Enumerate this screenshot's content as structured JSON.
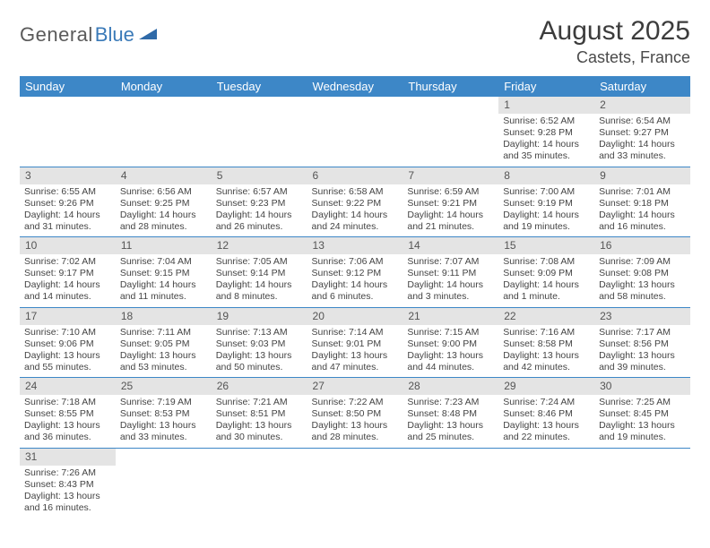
{
  "logo": {
    "word1": "General",
    "word2": "Blue"
  },
  "title": "August 2025",
  "location": "Castets, France",
  "colors": {
    "header_bg": "#3d87c7",
    "header_fg": "#ffffff",
    "daynum_bg": "#e4e4e4",
    "rule": "#3d87c7",
    "logo_gray": "#5a5a5a",
    "logo_blue": "#3a7ab8"
  },
  "day_labels": [
    "Sunday",
    "Monday",
    "Tuesday",
    "Wednesday",
    "Thursday",
    "Friday",
    "Saturday"
  ],
  "weeks": [
    [
      null,
      null,
      null,
      null,
      null,
      {
        "n": "1",
        "sr": "6:52 AM",
        "ss": "9:28 PM",
        "dl": "14 hours and 35 minutes."
      },
      {
        "n": "2",
        "sr": "6:54 AM",
        "ss": "9:27 PM",
        "dl": "14 hours and 33 minutes."
      }
    ],
    [
      {
        "n": "3",
        "sr": "6:55 AM",
        "ss": "9:26 PM",
        "dl": "14 hours and 31 minutes."
      },
      {
        "n": "4",
        "sr": "6:56 AM",
        "ss": "9:25 PM",
        "dl": "14 hours and 28 minutes."
      },
      {
        "n": "5",
        "sr": "6:57 AM",
        "ss": "9:23 PM",
        "dl": "14 hours and 26 minutes."
      },
      {
        "n": "6",
        "sr": "6:58 AM",
        "ss": "9:22 PM",
        "dl": "14 hours and 24 minutes."
      },
      {
        "n": "7",
        "sr": "6:59 AM",
        "ss": "9:21 PM",
        "dl": "14 hours and 21 minutes."
      },
      {
        "n": "8",
        "sr": "7:00 AM",
        "ss": "9:19 PM",
        "dl": "14 hours and 19 minutes."
      },
      {
        "n": "9",
        "sr": "7:01 AM",
        "ss": "9:18 PM",
        "dl": "14 hours and 16 minutes."
      }
    ],
    [
      {
        "n": "10",
        "sr": "7:02 AM",
        "ss": "9:17 PM",
        "dl": "14 hours and 14 minutes."
      },
      {
        "n": "11",
        "sr": "7:04 AM",
        "ss": "9:15 PM",
        "dl": "14 hours and 11 minutes."
      },
      {
        "n": "12",
        "sr": "7:05 AM",
        "ss": "9:14 PM",
        "dl": "14 hours and 8 minutes."
      },
      {
        "n": "13",
        "sr": "7:06 AM",
        "ss": "9:12 PM",
        "dl": "14 hours and 6 minutes."
      },
      {
        "n": "14",
        "sr": "7:07 AM",
        "ss": "9:11 PM",
        "dl": "14 hours and 3 minutes."
      },
      {
        "n": "15",
        "sr": "7:08 AM",
        "ss": "9:09 PM",
        "dl": "14 hours and 1 minute."
      },
      {
        "n": "16",
        "sr": "7:09 AM",
        "ss": "9:08 PM",
        "dl": "13 hours and 58 minutes."
      }
    ],
    [
      {
        "n": "17",
        "sr": "7:10 AM",
        "ss": "9:06 PM",
        "dl": "13 hours and 55 minutes."
      },
      {
        "n": "18",
        "sr": "7:11 AM",
        "ss": "9:05 PM",
        "dl": "13 hours and 53 minutes."
      },
      {
        "n": "19",
        "sr": "7:13 AM",
        "ss": "9:03 PM",
        "dl": "13 hours and 50 minutes."
      },
      {
        "n": "20",
        "sr": "7:14 AM",
        "ss": "9:01 PM",
        "dl": "13 hours and 47 minutes."
      },
      {
        "n": "21",
        "sr": "7:15 AM",
        "ss": "9:00 PM",
        "dl": "13 hours and 44 minutes."
      },
      {
        "n": "22",
        "sr": "7:16 AM",
        "ss": "8:58 PM",
        "dl": "13 hours and 42 minutes."
      },
      {
        "n": "23",
        "sr": "7:17 AM",
        "ss": "8:56 PM",
        "dl": "13 hours and 39 minutes."
      }
    ],
    [
      {
        "n": "24",
        "sr": "7:18 AM",
        "ss": "8:55 PM",
        "dl": "13 hours and 36 minutes."
      },
      {
        "n": "25",
        "sr": "7:19 AM",
        "ss": "8:53 PM",
        "dl": "13 hours and 33 minutes."
      },
      {
        "n": "26",
        "sr": "7:21 AM",
        "ss": "8:51 PM",
        "dl": "13 hours and 30 minutes."
      },
      {
        "n": "27",
        "sr": "7:22 AM",
        "ss": "8:50 PM",
        "dl": "13 hours and 28 minutes."
      },
      {
        "n": "28",
        "sr": "7:23 AM",
        "ss": "8:48 PM",
        "dl": "13 hours and 25 minutes."
      },
      {
        "n": "29",
        "sr": "7:24 AM",
        "ss": "8:46 PM",
        "dl": "13 hours and 22 minutes."
      },
      {
        "n": "30",
        "sr": "7:25 AM",
        "ss": "8:45 PM",
        "dl": "13 hours and 19 minutes."
      }
    ],
    [
      {
        "n": "31",
        "sr": "7:26 AM",
        "ss": "8:43 PM",
        "dl": "13 hours and 16 minutes."
      },
      null,
      null,
      null,
      null,
      null,
      null
    ]
  ],
  "labels": {
    "sunrise": "Sunrise:",
    "sunset": "Sunset:",
    "daylight": "Daylight:"
  }
}
